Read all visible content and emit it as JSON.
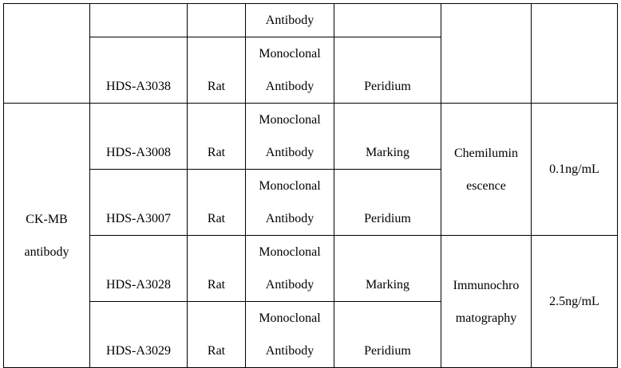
{
  "rows": [
    {
      "code": "",
      "host": "",
      "type_line1": "",
      "type_line2": "Antibody",
      "usage": ""
    },
    {
      "code": "HDS-A3038",
      "host": "Rat",
      "type_line1": "Monoclonal",
      "type_line2": "Antibody",
      "usage": "Peridium"
    },
    {
      "code": "HDS-A3008",
      "host": "Rat",
      "type_line1": "Monoclonal",
      "type_line2": "Antibody",
      "usage": "Marking"
    },
    {
      "code": "HDS-A3007",
      "host": "Rat",
      "type_line1": "Monoclonal",
      "type_line2": "Antibody",
      "usage": "Peridium"
    },
    {
      "code": "HDS-A3028",
      "host": "Rat",
      "type_line1": "Monoclonal",
      "type_line2": "Antibody",
      "usage": "Marking"
    },
    {
      "code": "HDS-A3029",
      "host": "Rat",
      "type_line1": "Monoclonal",
      "type_line2": "Antibody",
      "usage": "Peridium"
    }
  ],
  "product": {
    "line1": "CK-MB",
    "line2": "antibody"
  },
  "methods": [
    {
      "line1": "Chemilumin",
      "line2": "escence",
      "sensitivity": "0.1ng/mL"
    },
    {
      "line1": "Immunochro",
      "line2": "matography",
      "sensitivity": "2.5ng/mL"
    }
  ]
}
